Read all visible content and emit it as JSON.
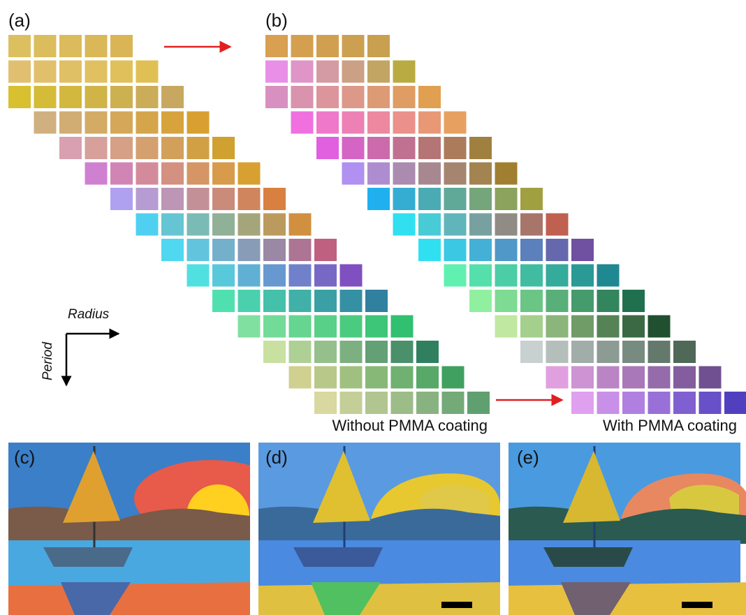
{
  "panels": {
    "a": {
      "label": "(a)"
    },
    "b": {
      "label": "(b)"
    },
    "c": {
      "label": "(c)"
    },
    "d": {
      "label": "(d)"
    },
    "e": {
      "label": "(e)"
    }
  },
  "axes": {
    "horizontal": "Radius",
    "vertical": "Period"
  },
  "captions": {
    "without": "Without PMMA coating",
    "with": "With PMMA coating"
  }
}
